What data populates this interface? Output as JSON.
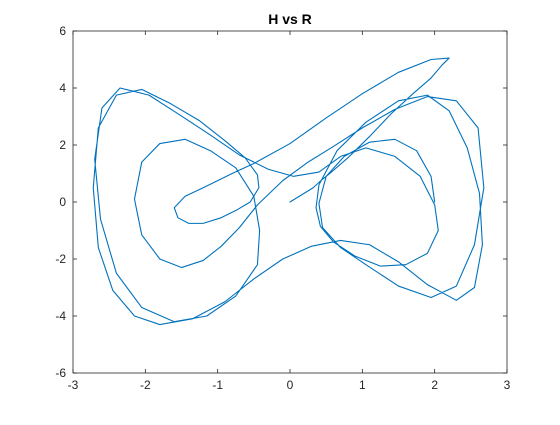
{
  "chart_data": {
    "type": "line",
    "title": "H vs R",
    "xlabel": "",
    "ylabel": "",
    "xlim": [
      -3,
      3
    ],
    "ylim": [
      -6,
      6
    ],
    "xticks": [
      -3,
      -2,
      -1,
      0,
      1,
      2,
      3
    ],
    "yticks": [
      -6,
      -4,
      -2,
      0,
      2,
      4,
      6
    ],
    "grid": false,
    "legend": "none",
    "colors": {
      "line": "#0072BD",
      "axes": "#262626",
      "background": "#ffffff"
    },
    "series": [
      {
        "name": "",
        "x": [
          0.0,
          0.16,
          0.32,
          0.44,
          0.55,
          0.8,
          1.1,
          1.4,
          1.7,
          1.95,
          2.1,
          2.2,
          1.95,
          1.5,
          1.0,
          0.5,
          0.0,
          -0.5,
          -0.8,
          -1.0,
          -1.2,
          -1.45,
          -1.6,
          -1.55,
          -1.4,
          -1.2,
          -0.95,
          -0.75,
          -0.55,
          -0.43,
          -0.45,
          -0.62,
          -0.9,
          -1.25,
          -1.65,
          -2.05,
          -2.4,
          -2.65,
          -2.72,
          -2.65,
          -2.45,
          -2.15,
          -1.8,
          -1.35,
          -0.9,
          -0.5,
          -0.1,
          0.3,
          0.7,
          1.1,
          1.5,
          1.9,
          2.3,
          2.55,
          2.66,
          2.62,
          2.45,
          2.2,
          1.9,
          1.5,
          1.05,
          0.65,
          0.4,
          0.36,
          0.42,
          0.6,
          0.9,
          1.25,
          1.6,
          1.9,
          2.05,
          2.0,
          1.8,
          1.45,
          1.05,
          0.7,
          0.4,
          0.05,
          -0.3,
          -0.7,
          -1.1,
          -1.55,
          -1.95,
          -2.35,
          -2.6,
          -2.7,
          -2.62,
          -2.4,
          -2.05,
          -1.6,
          -1.15,
          -0.75,
          -0.45,
          -0.42,
          -0.5,
          -0.75,
          -1.1,
          -1.45,
          -1.8,
          -2.05,
          -2.15,
          -2.05,
          -1.8,
          -1.5,
          -1.2,
          -0.95,
          -0.7,
          -0.45,
          -0.1,
          0.25,
          0.6,
          1.0,
          1.45,
          1.9,
          2.3,
          2.6,
          2.68,
          2.55,
          2.3,
          1.95,
          1.5,
          1.05,
          0.7,
          0.45,
          0.4,
          0.5,
          0.75,
          1.1,
          1.45,
          1.75,
          1.95,
          2.0
        ],
        "y": [
          0.0,
          0.25,
          0.5,
          0.78,
          1.0,
          1.55,
          2.3,
          3.1,
          3.8,
          4.35,
          4.8,
          5.05,
          5.0,
          4.55,
          3.8,
          2.95,
          2.05,
          1.35,
          1.0,
          0.75,
          0.5,
          0.2,
          -0.2,
          -0.55,
          -0.75,
          -0.75,
          -0.55,
          -0.3,
          0.0,
          0.5,
          0.95,
          1.55,
          2.15,
          2.85,
          3.45,
          3.95,
          3.75,
          2.6,
          0.5,
          -1.6,
          -3.1,
          -4.0,
          -4.3,
          -4.1,
          -3.5,
          -2.7,
          -2.0,
          -1.55,
          -1.35,
          -1.5,
          -2.1,
          -2.9,
          -3.45,
          -3.0,
          -1.5,
          0.3,
          1.9,
          3.2,
          3.75,
          3.55,
          2.8,
          1.8,
          0.6,
          -0.2,
          -0.85,
          -1.4,
          -1.9,
          -2.25,
          -2.2,
          -1.8,
          -1.0,
          -0.1,
          0.9,
          1.6,
          1.9,
          1.6,
          1.05,
          0.9,
          1.15,
          1.65,
          2.35,
          3.1,
          3.75,
          4.0,
          3.3,
          1.5,
          -0.6,
          -2.5,
          -3.7,
          -4.2,
          -4.0,
          -3.3,
          -2.2,
          -1.0,
          0.2,
          1.2,
          1.8,
          2.2,
          2.05,
          1.4,
          0.1,
          -1.15,
          -2.0,
          -2.3,
          -2.05,
          -1.55,
          -0.9,
          -0.1,
          0.75,
          1.4,
          1.95,
          2.6,
          3.25,
          3.7,
          3.55,
          2.6,
          0.5,
          -1.5,
          -2.95,
          -3.35,
          -2.95,
          -2.2,
          -1.6,
          -0.9,
          -0.05,
          0.9,
          1.6,
          2.1,
          2.2,
          1.8,
          0.9,
          0.0
        ]
      }
    ]
  }
}
